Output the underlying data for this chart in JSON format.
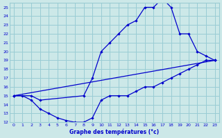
{
  "xlabel": "Graphe des températures (°c)",
  "bg_color": "#cce8e8",
  "grid_color": "#99ccd4",
  "line_color": "#0000cc",
  "xlim": [
    -0.5,
    23.5
  ],
  "ylim": [
    12,
    25.5
  ],
  "xticks": [
    0,
    1,
    2,
    3,
    4,
    5,
    6,
    7,
    8,
    9,
    10,
    11,
    12,
    13,
    14,
    15,
    16,
    17,
    18,
    19,
    20,
    21,
    22,
    23
  ],
  "yticks": [
    12,
    13,
    14,
    15,
    16,
    17,
    18,
    19,
    20,
    21,
    22,
    23,
    24,
    25
  ],
  "line1_min": {
    "x": [
      0,
      1,
      2,
      3,
      4,
      5,
      6,
      7,
      8,
      9,
      10,
      11,
      12,
      13,
      14,
      15,
      16,
      17,
      18,
      19,
      20,
      21,
      22,
      23
    ],
    "y": [
      15,
      15,
      14.5,
      13.5,
      13,
      12.5,
      12.2,
      12,
      12,
      12.5,
      14.5,
      15,
      15,
      15,
      15.5,
      16,
      16,
      16.5,
      17,
      17.5,
      18,
      18.5,
      19,
      19
    ]
  },
  "line2_max": {
    "x": [
      0,
      2,
      3,
      8,
      9,
      10,
      11,
      12,
      13,
      14,
      15,
      16,
      17,
      18,
      19,
      20,
      21,
      22,
      23
    ],
    "y": [
      15,
      15,
      14.5,
      15,
      17,
      20,
      21,
      22,
      23,
      23.5,
      25,
      25,
      26,
      25,
      22,
      22,
      20,
      19.5,
      19
    ]
  },
  "line3_trend": {
    "x": [
      0,
      23
    ],
    "y": [
      15,
      19
    ]
  }
}
